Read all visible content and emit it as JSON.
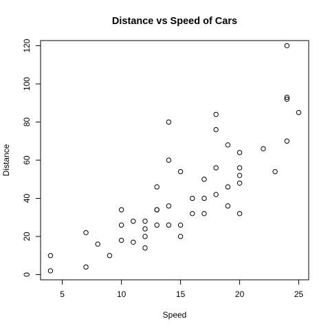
{
  "chart_data": {
    "type": "scatter",
    "title": "Distance vs Speed of Cars",
    "xlabel": "Speed",
    "ylabel": "Distance",
    "xlim": [
      3.16,
      25.84
    ],
    "ylim": [
      -2.72,
      122.72
    ],
    "xticks": [
      5,
      10,
      15,
      20,
      25
    ],
    "yticks": [
      0,
      20,
      40,
      60,
      80,
      100,
      120
    ],
    "grid": false,
    "points": [
      [
        4,
        2
      ],
      [
        4,
        10
      ],
      [
        7,
        4
      ],
      [
        7,
        22
      ],
      [
        8,
        16
      ],
      [
        9,
        10
      ],
      [
        10,
        18
      ],
      [
        10,
        26
      ],
      [
        10,
        34
      ],
      [
        11,
        17
      ],
      [
        11,
        28
      ],
      [
        12,
        14
      ],
      [
        12,
        20
      ],
      [
        12,
        24
      ],
      [
        12,
        28
      ],
      [
        13,
        26
      ],
      [
        13,
        34
      ],
      [
        13,
        34
      ],
      [
        13,
        46
      ],
      [
        14,
        26
      ],
      [
        14,
        36
      ],
      [
        14,
        60
      ],
      [
        14,
        80
      ],
      [
        15,
        20
      ],
      [
        15,
        26
      ],
      [
        15,
        54
      ],
      [
        16,
        32
      ],
      [
        16,
        40
      ],
      [
        17,
        32
      ],
      [
        17,
        40
      ],
      [
        17,
        50
      ],
      [
        18,
        42
      ],
      [
        18,
        56
      ],
      [
        18,
        76
      ],
      [
        18,
        84
      ],
      [
        19,
        36
      ],
      [
        19,
        46
      ],
      [
        19,
        68
      ],
      [
        20,
        32
      ],
      [
        20,
        48
      ],
      [
        20,
        52
      ],
      [
        20,
        56
      ],
      [
        20,
        64
      ],
      [
        22,
        66
      ],
      [
        23,
        54
      ],
      [
        24,
        70
      ],
      [
        24,
        92
      ],
      [
        24,
        93
      ],
      [
        24,
        120
      ],
      [
        25,
        85
      ]
    ]
  }
}
